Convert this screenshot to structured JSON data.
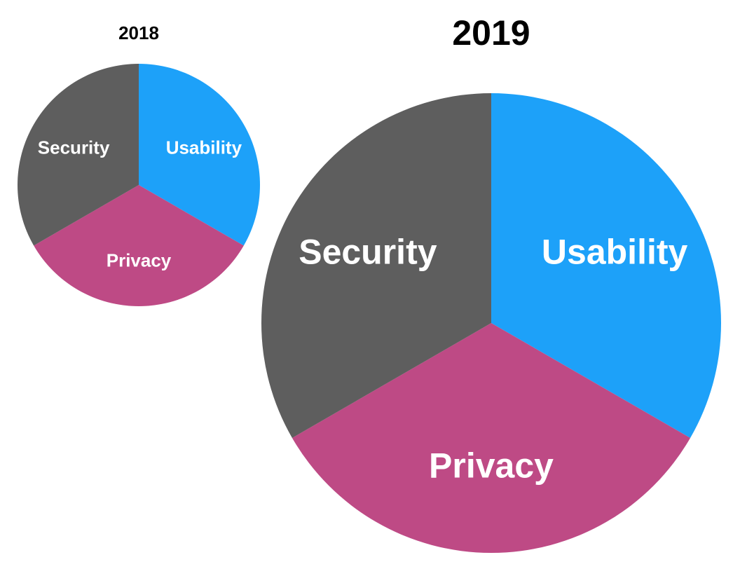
{
  "chart_data": [
    {
      "type": "pie",
      "title": "2018",
      "slices": [
        {
          "label": "Usability",
          "value": 0.3333,
          "color": "#1DA1F9"
        },
        {
          "label": "Privacy",
          "value": 0.3333,
          "color": "#BE4A85"
        },
        {
          "label": "Security",
          "value": 0.3333,
          "color": "#5E5E5E"
        }
      ]
    },
    {
      "type": "pie",
      "title": "2019",
      "slices": [
        {
          "label": "Usability",
          "value": 0.3333,
          "color": "#1DA1F9"
        },
        {
          "label": "Privacy",
          "value": 0.3333,
          "color": "#BE4A85"
        },
        {
          "label": "Security",
          "value": 0.3333,
          "color": "#5E5E5E"
        }
      ]
    }
  ]
}
